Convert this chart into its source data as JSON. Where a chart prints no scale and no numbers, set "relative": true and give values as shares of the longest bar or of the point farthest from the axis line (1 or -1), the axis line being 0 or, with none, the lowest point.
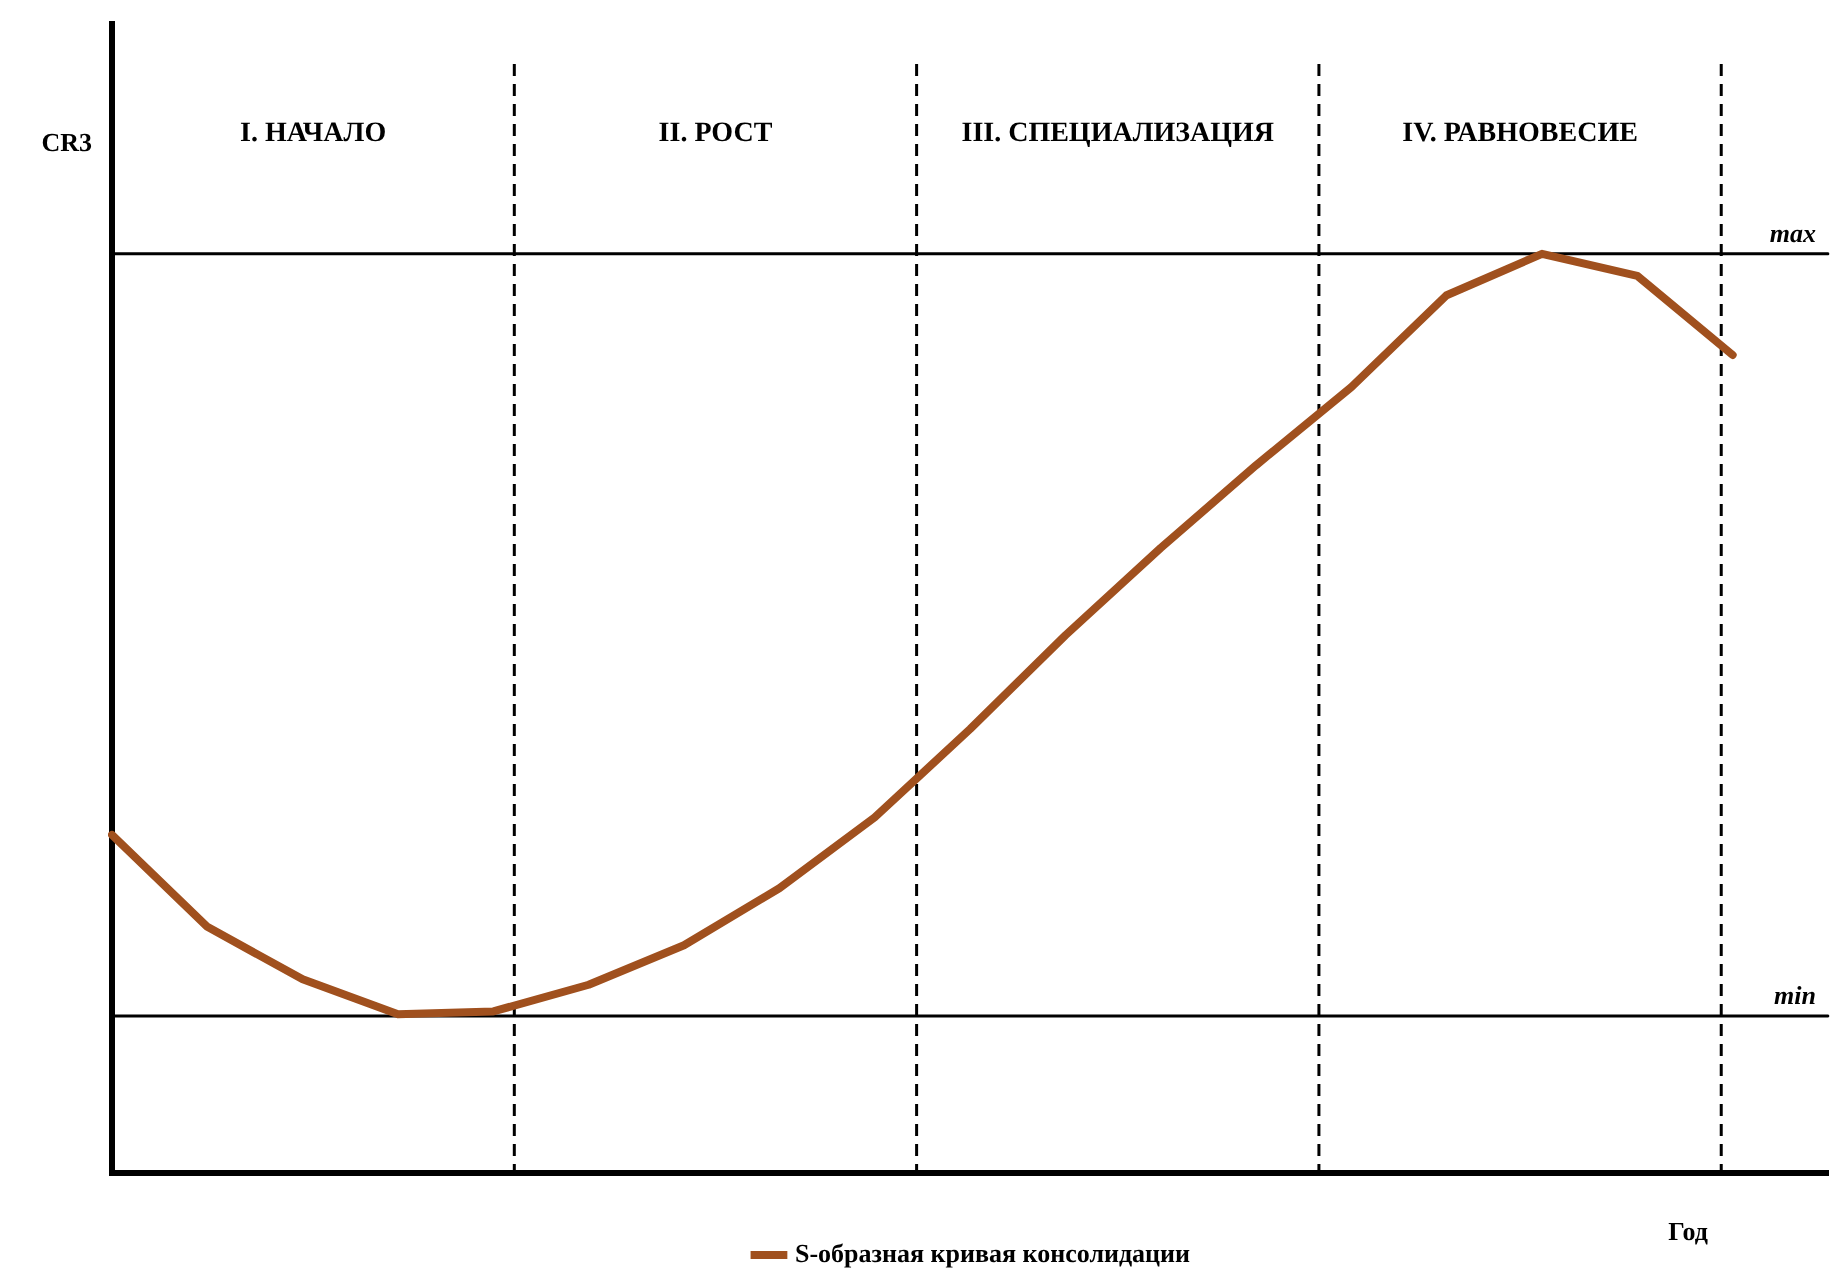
{
  "chart_data": {
    "type": "line",
    "relative": true,
    "xlabel": "Год",
    "ylabel": "CR3",
    "legend": "bottom",
    "marker": "none",
    "line_style": "solid",
    "categories": [
      null,
      null,
      null,
      null,
      null,
      null,
      null,
      null,
      null,
      null,
      null,
      null,
      null,
      null,
      null,
      null,
      null,
      null,
      null
    ],
    "series": [
      {
        "name": "S-образная кривая консолидации",
        "color": "#a0501e",
        "values": [
          0.368,
          0.268,
          0.211,
          0.173,
          0.176,
          0.205,
          0.248,
          0.31,
          0.387,
          0.483,
          0.585,
          0.68,
          0.77,
          0.855,
          0.955,
          1,
          0.976,
          0.89,
          null
        ]
      },
      {
        "name": "max",
        "color": "#000000",
        "values": [
          1,
          1,
          1,
          1,
          1,
          1,
          1,
          1,
          1,
          1,
          1,
          1,
          1,
          1,
          1,
          1,
          1,
          1,
          1
        ]
      },
      {
        "name": "min",
        "color": "#000000",
        "values": [
          0.171,
          0.171,
          0.171,
          0.171,
          0.171,
          0.171,
          0.171,
          0.171,
          0.171,
          0.171,
          0.171,
          0.171,
          0.171,
          0.171,
          0.171,
          0.171,
          0.171,
          0.171,
          0.171
        ]
      }
    ],
    "annotations": [
      "I. НАЧАЛО",
      "II. РОСТ",
      "III. СПЕЦИАЛИЗАЦИЯ",
      "IV. РАВНОВЕСИЕ"
    ]
  }
}
